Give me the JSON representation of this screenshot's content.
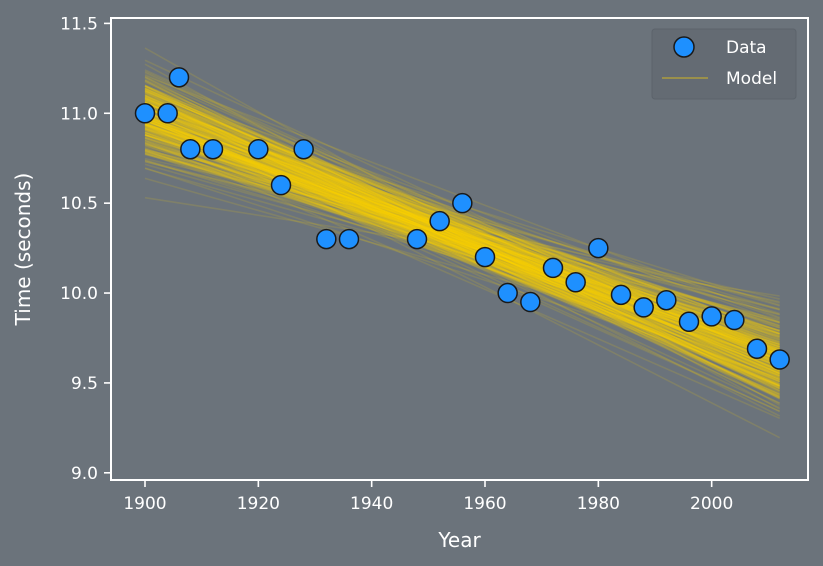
{
  "colors": {
    "background": "#6b737b",
    "axes": "#ffffff",
    "data_fill": "#1e90ff",
    "data_edge": "#1a1a1a",
    "model_line": "#ffd700",
    "legend_bg": "#646b73"
  },
  "chart_data": {
    "type": "scatter",
    "title": "",
    "xlabel": "Year",
    "ylabel": "Time (seconds)",
    "xlim": [
      1894,
      2017
    ],
    "ylim": [
      8.96,
      11.53
    ],
    "xticks": [
      1900,
      1920,
      1940,
      1960,
      1980,
      2000
    ],
    "yticks": [
      9.0,
      9.5,
      10.0,
      10.5,
      11.0,
      11.5
    ],
    "xtick_labels": [
      "1900",
      "1920",
      "1940",
      "1960",
      "1980",
      "2000"
    ],
    "ytick_labels": [
      "9.0",
      "9.5",
      "10.0",
      "10.5",
      "11.0",
      "11.5"
    ],
    "grid": false,
    "legend_placement": "top-right",
    "legend": [
      "Data",
      "Model"
    ],
    "series": [
      {
        "name": "Data",
        "kind": "points",
        "x": [
          1900,
          1904,
          1906,
          1908,
          1912,
          1920,
          1924,
          1928,
          1932,
          1936,
          1948,
          1952,
          1956,
          1960,
          1964,
          1968,
          1972,
          1976,
          1980,
          1984,
          1988,
          1992,
          1996,
          2000,
          2004,
          2008,
          2012
        ],
        "y": [
          11.0,
          11.0,
          11.2,
          10.8,
          10.8,
          10.8,
          10.6,
          10.8,
          10.3,
          10.3,
          10.3,
          10.4,
          10.5,
          10.2,
          10.0,
          9.95,
          10.14,
          10.06,
          10.25,
          9.99,
          9.92,
          9.96,
          9.84,
          9.87,
          9.85,
          9.69,
          9.63
        ]
      },
      {
        "name": "Model",
        "kind": "line-ensemble",
        "x_range": [
          1900,
          2012
        ],
        "mean_start": 10.98,
        "mean_end": 9.62,
        "start_spread": 0.2,
        "end_spread": 0.22,
        "count": 300
      }
    ]
  }
}
